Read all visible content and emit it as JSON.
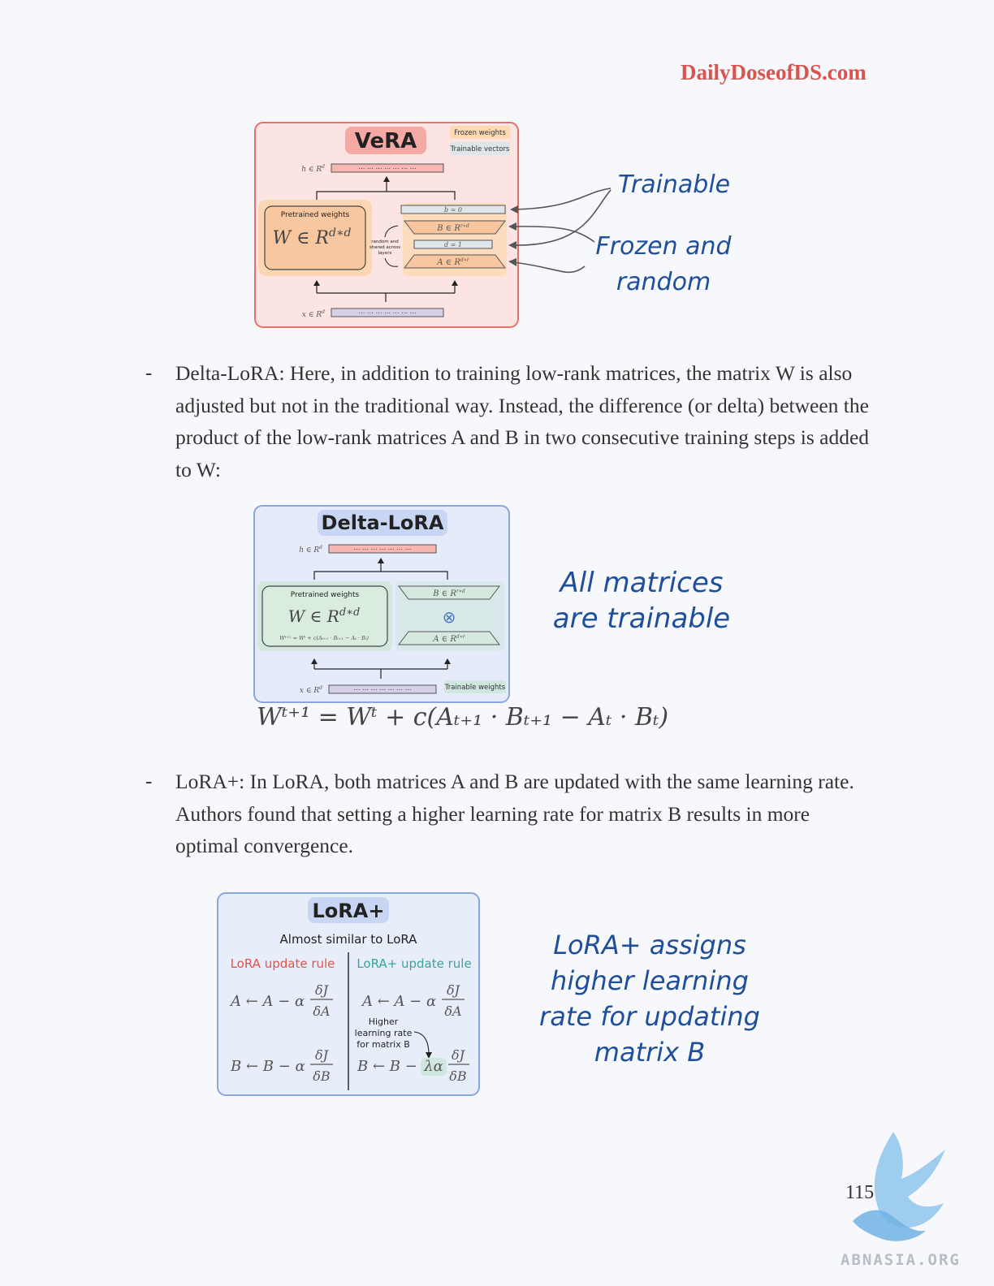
{
  "header": {
    "site": "DailyDoseofDS.com"
  },
  "vera": {
    "title": "VeRA",
    "legend_frozen": "Frozen weights",
    "legend_trainable": "Trainable vectors",
    "h_label": "h ∈ R",
    "h_sup": "d",
    "x_label": "x ∈ R",
    "x_sup": "d",
    "pretrained_label": "Pretrained weights",
    "w_main": "W ∈ R",
    "w_sup": "d∗d",
    "b_vec": "b = 0",
    "b_mat": "B ∈ R",
    "b_mat_sup": "r∗d",
    "d_vec": "d = 1",
    "a_mat": "A ∈ R",
    "a_mat_sup": "d∗r",
    "shared_line1": "random and",
    "shared_line2": "shared across",
    "shared_line3": "layers",
    "note_trainable": "Trainable",
    "note_frozen_line1": "Frozen and",
    "note_frozen_line2": "random"
  },
  "delta_lora_para": {
    "bullet": "-",
    "text": "Delta-LoRA: Here, in addition to training low-rank matrices, the matrix W is also adjusted but not in the traditional way. Instead, the difference (or delta) between the product of the low-rank matrices A and B in two consecutive training steps is added to W:"
  },
  "delta_lora": {
    "title": "Delta-LoRA",
    "h_label": "h ∈ R",
    "h_sup": "d",
    "x_label": "x ∈ R",
    "x_sup": "d",
    "pretrained_label": "Pretrained weights",
    "w_main": "W ∈ R",
    "w_sup": "d∗d",
    "w_update": "Wᵗ⁺¹ = Wᵗ + c(Aₜ₊₁ · Bₜ₊₁ − Aₜ · Bₜ)",
    "b_mat": "B ∈ R",
    "b_mat_sup": "r∗d",
    "a_mat": "A ∈ R",
    "a_mat_sup": "d∗r",
    "otimes": "⊗",
    "trainable_label": "Trainable weights",
    "note_line1": "All matrices",
    "note_line2": "are trainable",
    "formula": "Wᵗ⁺¹ = Wᵗ + c(Aₜ₊₁ · Bₜ₊₁ − Aₜ · Bₜ)"
  },
  "lora_plus_para": {
    "bullet": "-",
    "text": "LoRA+: In LoRA, both matrices A and B are updated with the same learning rate. Authors found that setting a higher learning rate for matrix B results in more optimal convergence."
  },
  "lora_plus": {
    "title": "LoRA+",
    "subtitle": "Almost similar to LoRA",
    "left_header": "LoRA update rule",
    "right_header": "LoRA+ update rule",
    "a_rule": "A ← A − α",
    "b_rule": "B ← B − α",
    "b_rule_plus_prefix": "B ← B −",
    "lambda_alpha": "λα",
    "frac_a_num": "δJ",
    "frac_a_den": "δA",
    "frac_b_num": "δJ",
    "frac_b_den": "δB",
    "higher_line1": "Higher",
    "higher_line2": "learning rate",
    "higher_line3": "for matrix B",
    "note_line1": "LoRA+ assigns",
    "note_line2": "higher learning",
    "note_line3": "rate for updating",
    "note_line4": "matrix B"
  },
  "footer": {
    "page_number": "115",
    "watermark": "ABNASIA.ORG"
  },
  "colors": {
    "brand_red": "#d9534f",
    "handwriting_blue": "#1f4f9a",
    "vera_bg": "#fbe4e2",
    "delta_bg": "#e5ebfa",
    "lora_plus_bg": "#e8edfa",
    "lora_red": "#e0534a",
    "lora_plus_teal": "#3aa39b"
  }
}
